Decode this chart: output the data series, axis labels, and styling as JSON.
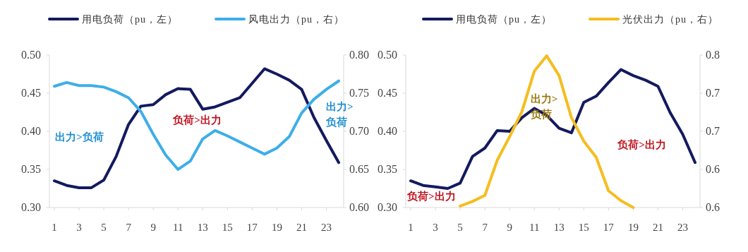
{
  "chart_data": [
    {
      "type": "line",
      "x": [
        1,
        2,
        3,
        4,
        5,
        6,
        7,
        8,
        9,
        10,
        11,
        12,
        13,
        14,
        15,
        16,
        17,
        18,
        19,
        20,
        21,
        22,
        23,
        24
      ],
      "xlim": [
        0.6,
        24.4
      ],
      "xticks": [
        1,
        3,
        5,
        7,
        9,
        11,
        13,
        15,
        17,
        19,
        21,
        23
      ],
      "ylim": [
        0.3,
        0.5
      ],
      "yticks": [
        {
          "value": 0.3,
          "label": "0.30"
        },
        {
          "value": 0.35,
          "label": "0.35"
        },
        {
          "value": 0.4,
          "label": "0.40"
        },
        {
          "value": 0.45,
          "label": "0.45"
        },
        {
          "value": 0.5,
          "label": "0.50"
        }
      ],
      "y2lim": [
        0.6,
        0.8
      ],
      "y2ticks": [
        {
          "value": 0.6,
          "label": "0.60"
        },
        {
          "value": 0.65,
          "label": "0.65"
        },
        {
          "value": 0.7,
          "label": "0.70"
        },
        {
          "value": 0.75,
          "label": "0.75"
        },
        {
          "value": 0.8,
          "label": "0.80"
        }
      ],
      "legend": "top",
      "grid": false,
      "series": [
        {
          "name": "用电负荷（pu，左）",
          "color": "#131a5e",
          "values": [
            0.335,
            0.329,
            0.326,
            0.326,
            0.336,
            0.367,
            0.409,
            0.433,
            0.435,
            0.448,
            0.456,
            0.455,
            0.429,
            0.432,
            0.438,
            0.444,
            0.463,
            0.482,
            0.475,
            0.467,
            0.455,
            0.418,
            0.388,
            0.359
          ]
        },
        {
          "name": "风电出力（pu，右）",
          "color": "#3daee9",
          "axis": "y2",
          "values": [
            0.759,
            0.764,
            0.76,
            0.76,
            0.758,
            0.752,
            0.744,
            0.726,
            0.696,
            0.669,
            0.65,
            0.661,
            0.69,
            0.701,
            0.694,
            0.686,
            0.678,
            0.67,
            0.678,
            0.693,
            0.724,
            0.742,
            0.755,
            0.766
          ]
        }
      ],
      "annotations": [
        "出力>负荷",
        "负荷>出力",
        "出力>负荷"
      ]
    },
    {
      "type": "line",
      "x": [
        1,
        2,
        3,
        4,
        5,
        6,
        7,
        8,
        9,
        10,
        11,
        12,
        13,
        14,
        15,
        16,
        17,
        18,
        19,
        20,
        21,
        22,
        23,
        24
      ],
      "xlim": [
        0.6,
        24.4
      ],
      "xticks": [
        1,
        3,
        5,
        7,
        9,
        11,
        13,
        15,
        17,
        19,
        21,
        23
      ],
      "ylim": [
        0.3,
        0.5
      ],
      "yticks": [
        {
          "value": 0.3,
          "label": "0.30"
        },
        {
          "value": 0.35,
          "label": "0.35"
        },
        {
          "value": 0.4,
          "label": "0.40"
        },
        {
          "value": 0.45,
          "label": "0.45"
        },
        {
          "value": 0.5,
          "label": "0.50"
        }
      ],
      "y2lim": [
        0.6,
        0.8
      ],
      "y2ticks": [
        {
          "value": 0.6,
          "label": "0.6"
        },
        {
          "value": 0.65,
          "label": "0.6"
        },
        {
          "value": 0.7,
          "label": "0.7"
        },
        {
          "value": 0.75,
          "label": "0.7"
        },
        {
          "value": 0.8,
          "label": "0.8"
        }
      ],
      "legend": "top",
      "grid": false,
      "series": [
        {
          "name": "用电负荷（pu，左）",
          "color": "#131a5e",
          "values": [
            0.335,
            0.329,
            0.327,
            0.325,
            0.332,
            0.367,
            0.378,
            0.401,
            0.4,
            0.418,
            0.43,
            0.421,
            0.404,
            0.398,
            0.438,
            0.446,
            0.464,
            0.481,
            0.473,
            0.467,
            0.459,
            0.424,
            0.396,
            0.359
          ]
        },
        {
          "name": "光伏出力（pu，右）",
          "color": "#f5bd1f",
          "axis": "y2",
          "x": [
            5,
            6,
            7,
            8,
            9,
            10,
            11,
            12,
            13,
            14,
            15,
            16,
            17,
            18,
            19
          ],
          "values": [
            0.602,
            0.608,
            0.616,
            0.662,
            0.693,
            0.726,
            0.779,
            0.799,
            0.773,
            0.718,
            0.687,
            0.666,
            0.622,
            0.609,
            0.6
          ]
        }
      ],
      "annotations": [
        "负荷>出力",
        "出力>负荷",
        "负荷>出力"
      ]
    }
  ]
}
